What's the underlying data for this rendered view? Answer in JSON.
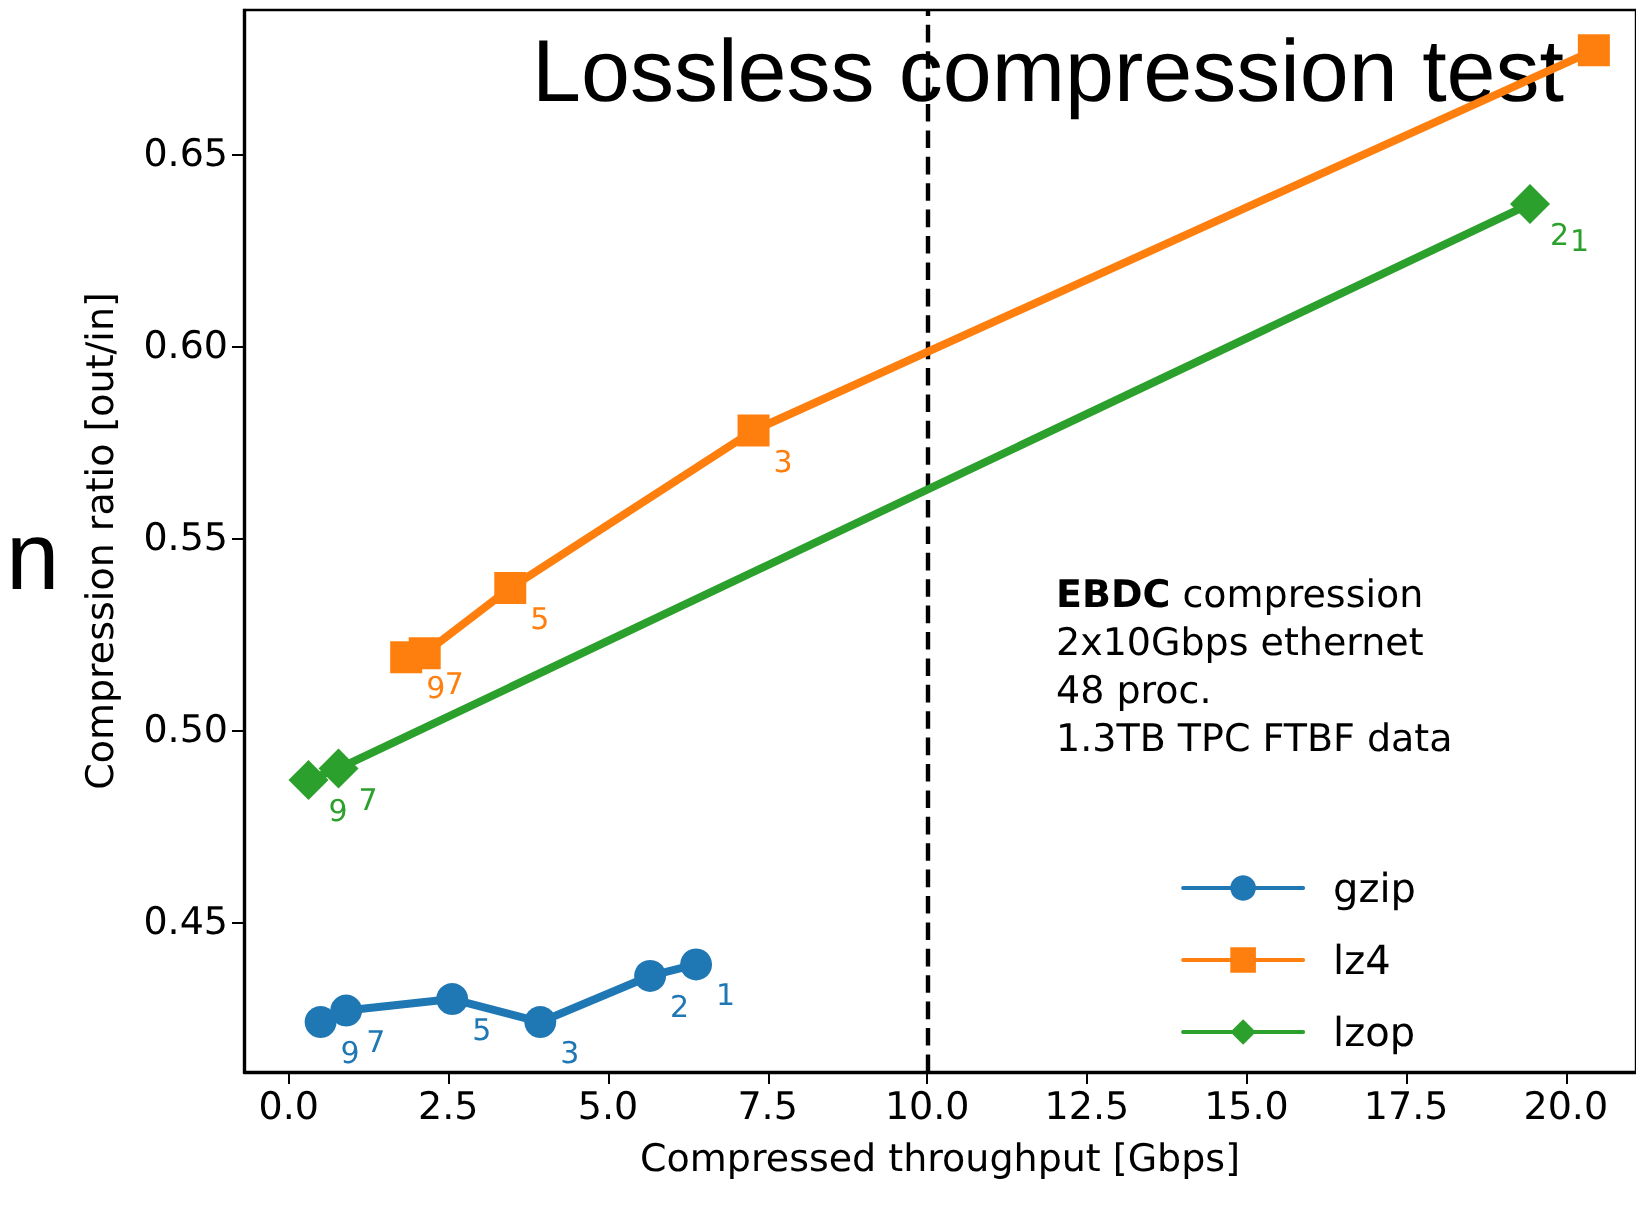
{
  "chart_data": {
    "type": "line",
    "title": "Lossless compression test",
    "xlabel": "Compressed throughput [Gbps]",
    "ylabel": "Compression ratio [out/in]",
    "xlim": [
      -0.7,
      21.1
    ],
    "ylim": [
      0.411,
      0.6875
    ],
    "xticks": [
      {
        "value": 0,
        "label": "0.0"
      },
      {
        "value": 2.5,
        "label": "2.5"
      },
      {
        "value": 5,
        "label": "5.0"
      },
      {
        "value": 7.5,
        "label": "7.5"
      },
      {
        "value": 10,
        "label": "10.0"
      },
      {
        "value": 12.5,
        "label": "12.5"
      },
      {
        "value": 15,
        "label": "15.0"
      },
      {
        "value": 17.5,
        "label": "17.5"
      },
      {
        "value": 20,
        "label": "20.0"
      }
    ],
    "yticks": [
      {
        "value": 0.45,
        "label": "0.45"
      },
      {
        "value": 0.5,
        "label": "0.50"
      },
      {
        "value": 0.55,
        "label": "0.55"
      },
      {
        "value": 0.6,
        "label": "0.60"
      },
      {
        "value": 0.65,
        "label": "0.65"
      }
    ],
    "grid": false,
    "legend": "bottom right",
    "series": [
      {
        "name": "gzip",
        "color": "#1f77b4",
        "marker": "circle",
        "x": [
          0.5,
          0.9,
          2.56,
          3.94,
          5.66,
          6.38
        ],
        "values": [
          0.424,
          0.427,
          0.43,
          0.424,
          0.436,
          0.439
        ]
      },
      {
        "name": "lz4",
        "color": "#ff7f0e",
        "marker": "square",
        "x": [
          1.84,
          2.13,
          3.47,
          7.28,
          20.44
        ],
        "values": [
          0.519,
          0.52,
          0.537,
          0.578,
          0.677
        ]
      },
      {
        "name": "lzop",
        "color": "#2ca02c",
        "marker": "diamond",
        "x": [
          0.31,
          0.78,
          19.44
        ],
        "values": [
          0.487,
          0.49,
          0.637
        ]
      }
    ],
    "ref_lines": [
      {
        "axis": "x",
        "value": 10,
        "color": "#000000",
        "line_style": "dashed"
      }
    ],
    "annotations": [
      "EBDC compression",
      "2x10Gbps ethernet",
      "48 proc.",
      "1.3TB TPC FTBF data",
      "n",
      {
        "text": "9",
        "x": 0.5,
        "y": 0.424
      },
      {
        "text": "7",
        "x": 0.9,
        "y": 0.427
      },
      {
        "text": "5",
        "x": 2.56,
        "y": 0.43
      },
      {
        "text": "3",
        "x": 3.94,
        "y": 0.424
      },
      {
        "text": "2",
        "x": 5.66,
        "y": 0.436
      },
      {
        "text": "1",
        "x": 6.38,
        "y": 0.439
      },
      {
        "text": "9",
        "x": 1.84,
        "y": 0.519
      },
      {
        "text": "7",
        "x": 2.13,
        "y": 0.52
      },
      {
        "text": "5",
        "x": 3.47,
        "y": 0.537
      },
      {
        "text": "3",
        "x": 7.28,
        "y": 0.578
      },
      {
        "text": "9",
        "x": 0.31,
        "y": 0.487
      },
      {
        "text": "7",
        "x": 0.78,
        "y": 0.49
      },
      {
        "text": "2",
        "x": 19.44,
        "y": 0.637
      },
      {
        "text": "1",
        "x": 19.44,
        "y": 0.637
      }
    ]
  }
}
